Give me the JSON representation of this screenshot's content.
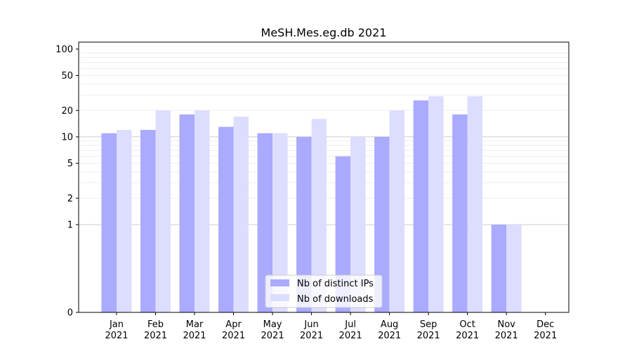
{
  "chart_data": {
    "type": "bar",
    "title": "MeSH.Mes.eg.db 2021",
    "xlabel": "",
    "ylabel": "",
    "y_scale": "symlog",
    "y_ticks": [
      0,
      1,
      2,
      5,
      10,
      20,
      50,
      100
    ],
    "ylim": [
      0,
      120
    ],
    "categories": [
      [
        "Jan",
        "2021"
      ],
      [
        "Feb",
        "2021"
      ],
      [
        "Mar",
        "2021"
      ],
      [
        "Apr",
        "2021"
      ],
      [
        "May",
        "2021"
      ],
      [
        "Jun",
        "2021"
      ],
      [
        "Jul",
        "2021"
      ],
      [
        "Aug",
        "2021"
      ],
      [
        "Sep",
        "2021"
      ],
      [
        "Oct",
        "2021"
      ],
      [
        "Nov",
        "2021"
      ],
      [
        "Dec",
        "2021"
      ]
    ],
    "series": [
      {
        "name": "Nb of distinct IPs",
        "color": "#aaaaff",
        "values": [
          11,
          12,
          18,
          13,
          11,
          10,
          6,
          10,
          26,
          18,
          1,
          0
        ]
      },
      {
        "name": "Nb of downloads",
        "color": "#ddddff",
        "values": [
          12,
          20,
          20,
          17,
          11,
          16,
          10,
          20,
          29,
          29,
          1,
          0
        ]
      }
    ],
    "legend": {
      "position": "bottom-center"
    },
    "grid": true
  }
}
